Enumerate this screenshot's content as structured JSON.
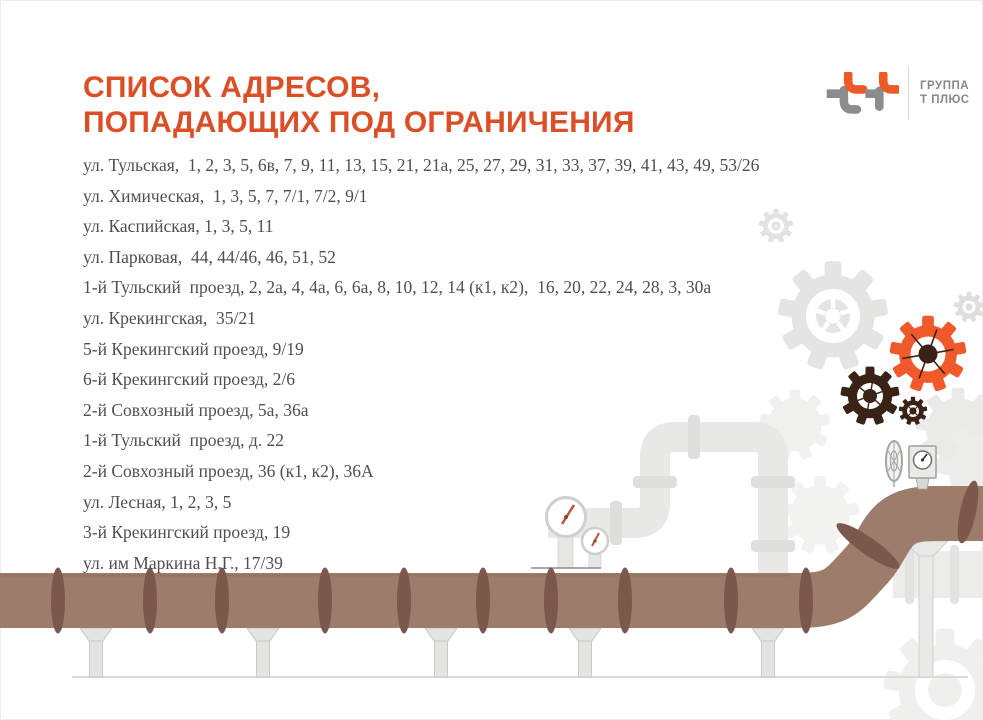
{
  "header": {
    "title_line1": "СПИСОК АДРЕСОВ,",
    "title_line2": "ПОПАДАЮЩИХ ПОД ОГРАНИЧЕНИЯ",
    "logo": {
      "company_line1": "ГРУППА",
      "company_line2": "Т ПЛЮС"
    }
  },
  "addresses": [
    "ул. Тульская,  1, 2, 3, 5, 6в, 7, 9, 11, 13, 15, 21, 21а, 25, 27, 29, 31, 33, 37, 39, 41, 43, 49, 53/26",
    "ул. Химическая,  1, 3, 5, 7, 7/1, 7/2, 9/1",
    "ул. Каспийская, 1, 3, 5, 11",
    "ул. Парковая,  44, 44/46, 46, 51, 52",
    "1-й Тульский  проезд, 2, 2а, 4, 4а, 6, 6а, 8, 10, 12, 14 (к1, к2),  16, 20, 22, 24, 28, 3, 30а",
    "ул. Крекингская,  35/21",
    "5-й Крекингский проезд, 9/19",
    "6-й Крекингский проезд, 2/6",
    "2-й Совхозный проезд, 5а, 36а",
    "1-й Тульский  проезд, д. 22",
    "2-й Совхозный проезд, 36 (к1, к2), 36А",
    "ул. Лесная, 1, 2, 3, 5",
    "3-й Крекингский проезд, 19",
    "ул. им Маркина Н.Г., 17/39"
  ],
  "colors": {
    "accent_orange": "#DB4E26",
    "text_gray": "#4F4F4F",
    "logo_orange": "#EC5A29",
    "logo_gray": "#8A8C8F",
    "logo_gray_text": "#85878A",
    "pipe_brown": "#9D7C6C",
    "pipe_ring": "#7B584B",
    "gear_orange": "#F05A2B",
    "gear_dark": "#3A2316",
    "gauge_needle": "#C8512A"
  }
}
